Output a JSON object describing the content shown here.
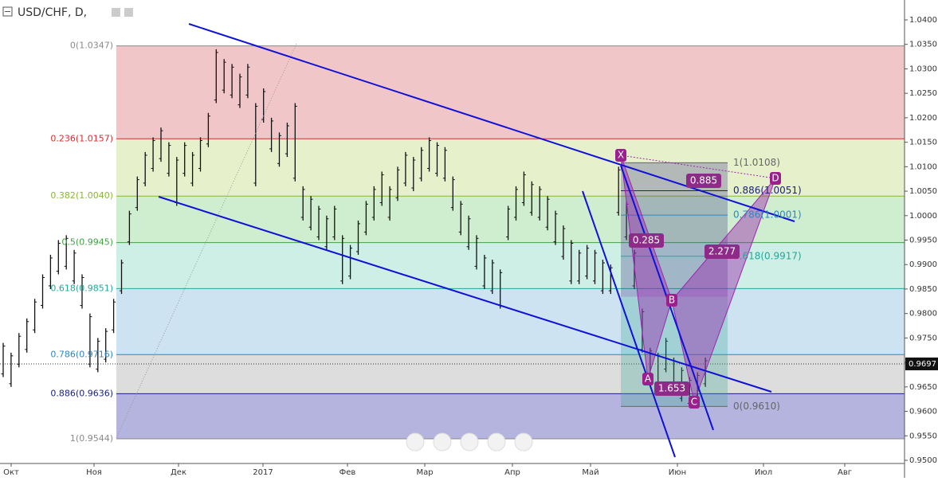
{
  "chart_data": {
    "type": "price_bars",
    "title": "USD/CHF, D,",
    "bar_color": "#111111",
    "high": [
      0.974,
      0.972,
      0.976,
      0.979,
      0.983,
      0.988,
      0.992,
      0.995,
      0.996,
      0.993,
      0.988,
      0.98,
      0.975,
      0.977,
      0.983,
      0.991,
      1.001,
      1.008,
      1.013,
      1.016,
      1.018,
      1.015,
      1.012,
      1.015,
      1.013,
      1.016,
      1.021,
      1.034,
      1.032,
      1.031,
      1.029,
      1.031,
      1.023,
      1.026,
      1.02,
      1.017,
      1.019,
      1.023,
      1.006,
      1.004,
      1.002,
      1.0,
      1.002,
      0.996,
      0.994,
      0.999,
      1.003,
      1.006,
      1.009,
      1.006,
      1.01,
      1.013,
      1.012,
      1.014,
      1.016,
      1.015,
      1.014,
      1.008,
      1.003,
      1.0,
      0.996,
      0.992,
      0.991,
      0.989,
      1.002,
      1.006,
      1.009,
      1.007,
      1.006,
      1.004,
      1.001,
      0.998,
      0.995,
      0.993,
      0.994,
      0.993,
      0.991,
      0.99,
      1.01,
      1.003,
      0.993,
      0.981,
      0.973,
      0.972,
      0.975,
      0.971,
      0.969,
      0.967,
      0.968,
      0.971
    ],
    "low": [
      0.967,
      0.965,
      0.969,
      0.972,
      0.976,
      0.981,
      0.985,
      0.988,
      0.989,
      0.986,
      0.981,
      0.969,
      0.968,
      0.97,
      0.976,
      0.984,
      0.994,
      1.001,
      1.006,
      1.009,
      1.011,
      1.008,
      1.002,
      1.008,
      1.006,
      1.009,
      1.014,
      1.023,
      1.025,
      1.024,
      1.022,
      1.024,
      1.006,
      1.019,
      1.013,
      1.01,
      1.012,
      1.007,
      0.999,
      0.997,
      0.995,
      0.993,
      0.995,
      0.986,
      0.987,
      0.992,
      0.996,
      0.999,
      1.002,
      0.999,
      1.003,
      1.006,
      1.005,
      1.007,
      1.009,
      1.008,
      1.007,
      1.001,
      0.996,
      0.993,
      0.989,
      0.985,
      0.984,
      0.981,
      0.995,
      0.999,
      1.002,
      1.0,
      0.999,
      0.997,
      0.994,
      0.991,
      0.986,
      0.986,
      0.987,
      0.986,
      0.984,
      0.984,
      1.0,
      0.995,
      0.985,
      0.972,
      0.966,
      0.965,
      0.968,
      0.964,
      0.962,
      0.961,
      0.962,
      0.965
    ],
    "x_labels": [
      "Окт",
      "Ноя",
      "Дек",
      "2017",
      "Фев",
      "Мар",
      "Апр",
      "Май",
      "Июн",
      "Июл",
      "Авг"
    ],
    "ylim": [
      0.95,
      1.04
    ],
    "yticks": [
      {
        "value": 1.04,
        "label": "1.0400"
      },
      {
        "value": 1.035,
        "label": "1.0350"
      },
      {
        "value": 1.03,
        "label": "1.0300"
      },
      {
        "value": 1.025,
        "label": "1.0250"
      },
      {
        "value": 1.02,
        "label": "1.0200"
      },
      {
        "value": 1.015,
        "label": "1.0150"
      },
      {
        "value": 1.01,
        "label": "1.0100"
      },
      {
        "value": 1.005,
        "label": "1.0050"
      },
      {
        "value": 1.0,
        "label": "1.0000"
      },
      {
        "value": 0.995,
        "label": "0.9950"
      },
      {
        "value": 0.99,
        "label": "0.9900"
      },
      {
        "value": 0.985,
        "label": "0.9850"
      },
      {
        "value": 0.98,
        "label": "0.9800"
      },
      {
        "value": 0.975,
        "label": "0.9750"
      },
      {
        "value": 0.97,
        "label": "0.9700"
      },
      {
        "value": 0.965,
        "label": "0.9650"
      },
      {
        "value": 0.96,
        "label": "0.9600"
      },
      {
        "value": 0.955,
        "label": "0.9550"
      },
      {
        "value": 0.95,
        "label": "0.9500"
      }
    ],
    "last_price": {
      "value": 0.9697,
      "label": "0.9697"
    },
    "fib_levels": [
      {
        "label": "0(1.0347)",
        "price": 1.0347,
        "color": "#8a8a8a"
      },
      {
        "label": "0.236(1.0157)",
        "price": 1.0157,
        "color": "#d32f2f"
      },
      {
        "label": "0.382(1.0040)",
        "price": 1.004,
        "color": "#8bb43a"
      },
      {
        "label": "0.5(0.9945)",
        "price": 0.9945,
        "color": "#43a047"
      },
      {
        "label": "0.618(0.9851)",
        "price": 0.9851,
        "color": "#26a69a"
      },
      {
        "label": "0.786(0.9716)",
        "price": 0.9716,
        "color": "#2e86c1"
      },
      {
        "label": "0.886(0.9636)",
        "price": 0.9636,
        "color": "#1a237e"
      },
      {
        "label": "1(0.9544)",
        "price": 0.9544,
        "color": "#8a8a8a"
      }
    ],
    "fib_zone_colors": [
      "#f1c6c8",
      "#e6f1cc",
      "#cfeecf",
      "#cdefe6",
      "#cde3f1",
      "#dddddd",
      "#b4b4df"
    ],
    "pattern_points": [
      "X",
      "A",
      "B",
      "C",
      "D"
    ],
    "pattern_ratios": [
      "0.885",
      "0.285",
      "2.277",
      "1.653"
    ],
    "pattern_levels": [
      {
        "label": "1(1.0108)",
        "price": 1.0108,
        "color": "#666666"
      },
      {
        "label": "0.886(1.0051)",
        "price": 1.0051,
        "color": "#1a237e"
      },
      {
        "label": "0.786(1.0001)",
        "price": 1.0001,
        "color": "#2e86c1"
      },
      {
        "label": "0.618(0.9917)",
        "price": 0.9917,
        "color": "#26a69a"
      },
      {
        "label": "0(0.9610)",
        "price": 0.961,
        "color": "#666666"
      }
    ]
  }
}
